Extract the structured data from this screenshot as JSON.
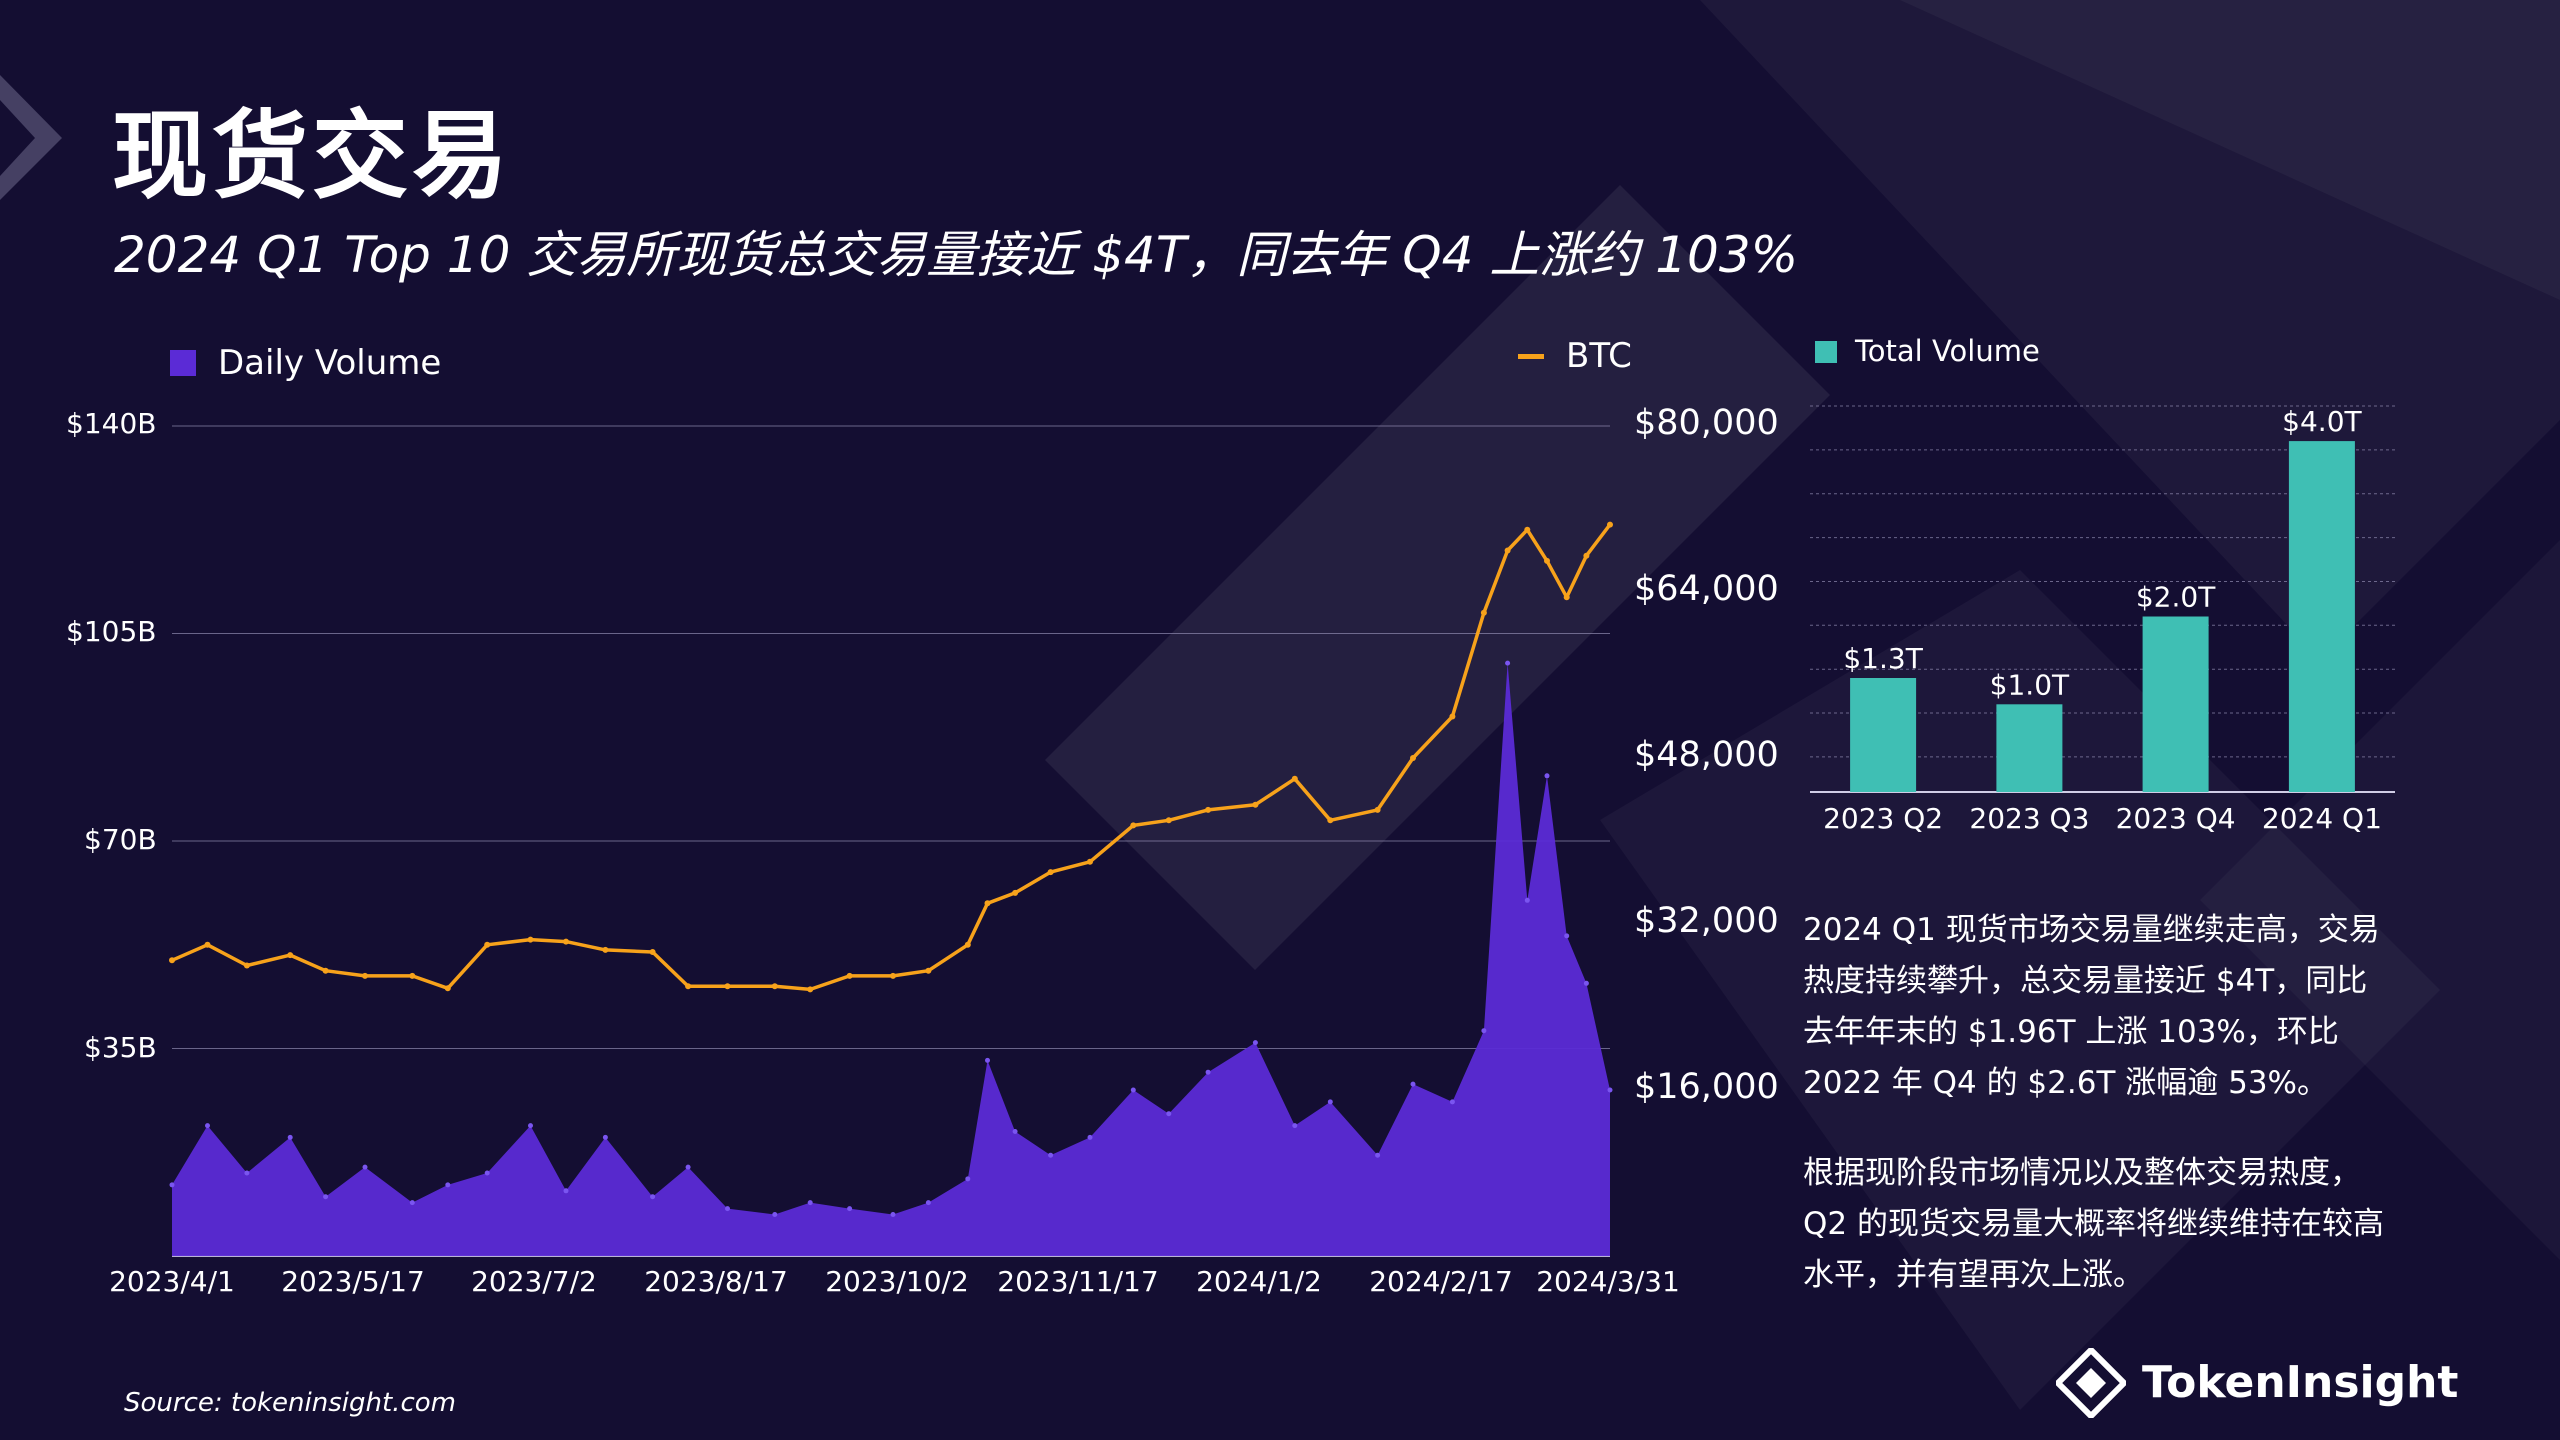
{
  "header": {
    "title": "现货交易",
    "subtitle": "2024 Q1 Top 10 交易所现货总交易量接近 $4T，同去年 Q4 上涨约 103%"
  },
  "colors": {
    "volume": "#5b2bd6",
    "btc": "#f7a21b",
    "total": "#3fbfb4",
    "background": "#140e32"
  },
  "chart_data": [
    {
      "type": "area",
      "legend": [
        "Daily Volume",
        "BTC"
      ],
      "y_left_ticks": [
        "$140B",
        "$105B",
        "$70B",
        "$35B"
      ],
      "y_left_lim": [
        0,
        140
      ],
      "y_right_ticks": [
        "$80,000",
        "$64,000",
        "$48,000",
        "$32,000",
        "$16,000"
      ],
      "y_right_lim": [
        0,
        80000
      ],
      "x_ticks": [
        "2023/4/1",
        "2023/5/17",
        "2023/7/2",
        "2023/8/17",
        "2023/10/2",
        "2023/11/17",
        "2024/1/2",
        "2024/2/17",
        "2024/3/31"
      ],
      "series": [
        {
          "name": "Daily Volume",
          "unit": "B USD",
          "axis": "left",
          "x": [
            "2023/4/1",
            "2023/4/10",
            "2023/4/20",
            "2023/5/1",
            "2023/5/10",
            "2023/5/20",
            "2023/6/1",
            "2023/6/10",
            "2023/6/20",
            "2023/7/1",
            "2023/7/10",
            "2023/7/20",
            "2023/8/1",
            "2023/8/10",
            "2023/8/20",
            "2023/9/1",
            "2023/9/10",
            "2023/9/20",
            "2023/10/1",
            "2023/10/10",
            "2023/10/20",
            "2023/10/25",
            "2023/11/1",
            "2023/11/10",
            "2023/11/20",
            "2023/12/1",
            "2023/12/10",
            "2023/12/20",
            "2024/1/1",
            "2024/1/11",
            "2024/1/20",
            "2024/2/1",
            "2024/2/10",
            "2024/2/20",
            "2024/2/28",
            "2024/3/5",
            "2024/3/10",
            "2024/3/15",
            "2024/3/20",
            "2024/3/25",
            "2024/3/31"
          ],
          "values": [
            12,
            22,
            14,
            20,
            10,
            15,
            9,
            12,
            14,
            22,
            11,
            20,
            10,
            15,
            8,
            7,
            9,
            8,
            7,
            9,
            13,
            33,
            21,
            17,
            20,
            28,
            24,
            31,
            36,
            22,
            26,
            17,
            29,
            26,
            38,
            100,
            60,
            81,
            54,
            46,
            28
          ]
        },
        {
          "name": "BTC",
          "unit": "USD",
          "axis": "right",
          "x": [
            "2023/4/1",
            "2023/4/10",
            "2023/4/20",
            "2023/5/1",
            "2023/5/10",
            "2023/5/20",
            "2023/6/1",
            "2023/6/10",
            "2023/6/20",
            "2023/7/1",
            "2023/7/10",
            "2023/7/20",
            "2023/8/1",
            "2023/8/10",
            "2023/8/20",
            "2023/9/1",
            "2023/9/10",
            "2023/9/20",
            "2023/10/1",
            "2023/10/10",
            "2023/10/20",
            "2023/10/25",
            "2023/11/1",
            "2023/11/10",
            "2023/11/20",
            "2023/12/1",
            "2023/12/10",
            "2023/12/20",
            "2024/1/1",
            "2024/1/11",
            "2024/1/20",
            "2024/2/1",
            "2024/2/10",
            "2024/2/20",
            "2024/2/28",
            "2024/3/5",
            "2024/3/10",
            "2024/3/15",
            "2024/3/20",
            "2024/3/25",
            "2024/3/31"
          ],
          "values": [
            28500,
            30000,
            28000,
            29000,
            27500,
            27000,
            27000,
            25800,
            30000,
            30500,
            30300,
            29500,
            29300,
            26000,
            26000,
            26000,
            25700,
            27000,
            27000,
            27500,
            30000,
            34000,
            35000,
            37000,
            38000,
            41500,
            42000,
            43000,
            43500,
            46000,
            42000,
            43000,
            48000,
            52000,
            62000,
            68000,
            70000,
            67000,
            63500,
            67500,
            70500
          ]
        }
      ]
    },
    {
      "type": "bar",
      "legend": "Total Volume",
      "categories": [
        "2023 Q2",
        "2023 Q3",
        "2023 Q4",
        "2024 Q1"
      ],
      "values": [
        1.3,
        1.0,
        2.0,
        4.0
      ],
      "labels": [
        "$1.3T",
        "$1.0T",
        "$2.0T",
        "$4.0T"
      ],
      "ylim": [
        0,
        4.4
      ]
    }
  ],
  "paragraphs": [
    [
      "2024 Q1 现货市场交易量继续走高，交易",
      "热度持续攀升，总交易量接近 $4T，同比",
      "去年年末的 $1.96T 上涨 103%，环比",
      "2022 年 Q4 的 $2.6T 涨幅逾 53%。"
    ],
    [
      "根据现阶段市场情况以及整体交易热度，",
      "Q2 的现货交易量大概率将继续维持在较高",
      "水平，并有望再次上涨。"
    ]
  ],
  "footer": {
    "source": "Source: tokeninsight.com",
    "brand": "TokenInsight"
  }
}
